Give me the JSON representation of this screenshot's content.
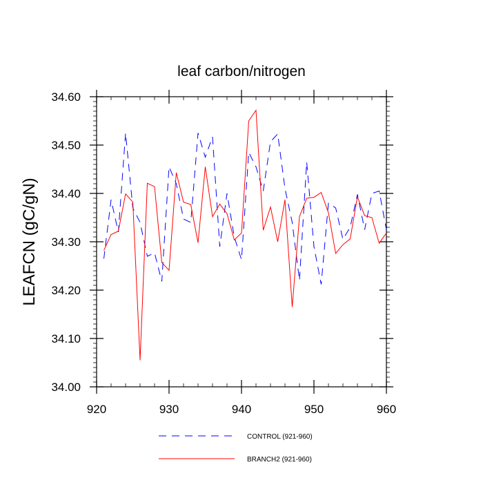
{
  "chart_data": {
    "type": "line",
    "title": "leaf carbon/nitrogen",
    "xlabel": "",
    "ylabel": "LEAFCN  (gC/gN)",
    "xlim": [
      920,
      960
    ],
    "ylim": [
      34.0,
      34.6
    ],
    "x_ticks": [
      920,
      930,
      940,
      950,
      960
    ],
    "x_tick_labels": [
      "920",
      "930",
      "940",
      "950",
      "960"
    ],
    "y_ticks": [
      34.0,
      34.1,
      34.2,
      34.3,
      34.4,
      34.5,
      34.6
    ],
    "y_tick_labels": [
      "34.00",
      "34.10",
      "34.20",
      "34.30",
      "34.40",
      "34.50",
      "34.60"
    ],
    "grid": false,
    "legend_position": "bottom-center",
    "x": [
      921,
      922,
      923,
      924,
      925,
      926,
      927,
      928,
      929,
      930,
      931,
      932,
      933,
      934,
      935,
      936,
      937,
      938,
      939,
      940,
      941,
      942,
      943,
      944,
      945,
      946,
      947,
      948,
      949,
      950,
      951,
      952,
      953,
      954,
      955,
      956,
      957,
      958,
      959,
      960
    ],
    "series": [
      {
        "name": "CONTROL (921-960)",
        "color": "#0000ff",
        "dash": "dashed",
        "values": [
          34.265,
          34.387,
          34.32,
          34.525,
          34.37,
          34.34,
          34.27,
          34.277,
          34.218,
          34.455,
          34.42,
          34.347,
          34.34,
          34.525,
          34.475,
          34.517,
          34.29,
          34.4,
          34.31,
          34.263,
          34.485,
          34.455,
          34.405,
          34.507,
          34.523,
          34.41,
          34.34,
          34.22,
          34.465,
          34.29,
          34.212,
          34.38,
          34.37,
          34.305,
          34.33,
          34.398,
          34.325,
          34.4,
          34.405,
          34.325
        ]
      },
      {
        "name": "BRANCH2 (921-960)",
        "color": "#ff0000",
        "dash": "solid",
        "values": [
          34.282,
          34.315,
          34.322,
          34.399,
          34.382,
          34.055,
          34.421,
          34.414,
          34.257,
          34.241,
          34.443,
          34.382,
          34.377,
          34.298,
          34.455,
          34.352,
          34.378,
          34.358,
          34.304,
          34.318,
          34.55,
          34.572,
          34.324,
          34.372,
          34.3,
          34.387,
          34.165,
          34.352,
          34.39,
          34.392,
          34.402,
          34.36,
          34.276,
          34.294,
          34.306,
          34.393,
          34.354,
          34.35,
          34.297,
          34.318
        ]
      }
    ]
  }
}
